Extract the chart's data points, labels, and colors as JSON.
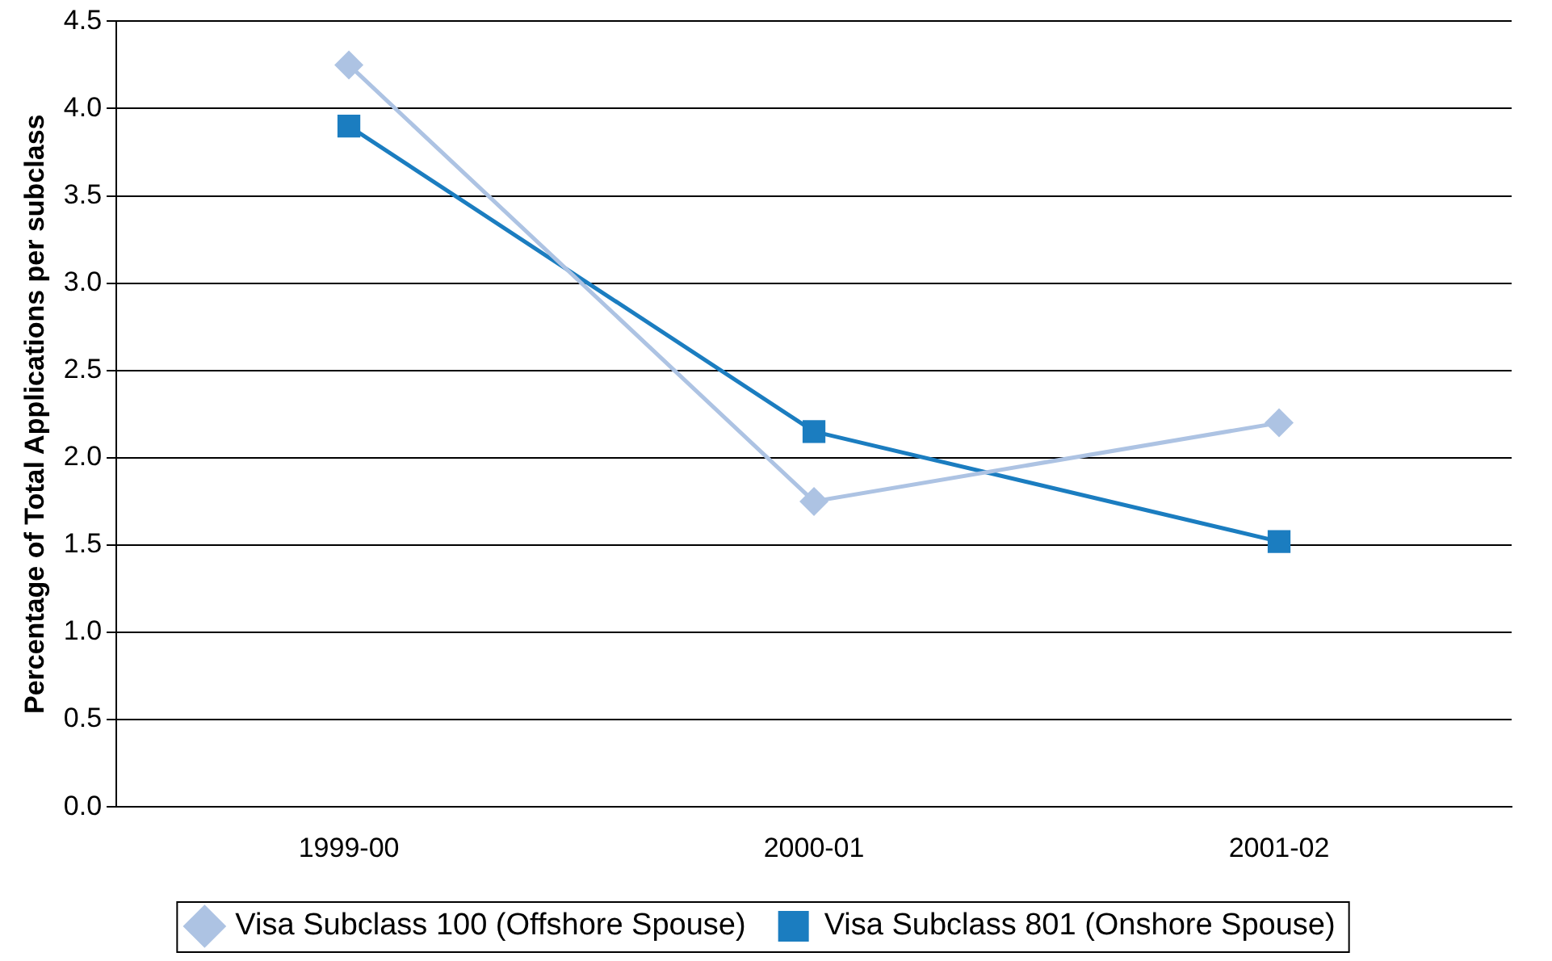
{
  "chart_data": {
    "type": "line",
    "ylabel": "Percentage of Total Applications per subclass",
    "categories": [
      "1999-00",
      "2000-01",
      "2001-02"
    ],
    "series": [
      {
        "name": "Visa Subclass 100 (Offshore Spouse)",
        "color": "#adc3e3",
        "marker": "diamond",
        "values": [
          4.25,
          1.75,
          2.2
        ]
      },
      {
        "name": "Visa Subclass 801 (Onshore Spouse)",
        "color": "#1b7dc0",
        "marker": "square",
        "values": [
          3.9,
          2.15,
          1.52
        ]
      }
    ],
    "ylim": [
      0,
      4.5
    ],
    "yticks": [
      {
        "value": 0,
        "label": "0.0"
      },
      {
        "value": 0.5,
        "label": "0.5"
      },
      {
        "value": 1,
        "label": "1.0"
      },
      {
        "value": 1.5,
        "label": "1.5"
      },
      {
        "value": 2,
        "label": "2.0"
      },
      {
        "value": 2.5,
        "label": "2.5"
      },
      {
        "value": 3,
        "label": "3.0"
      },
      {
        "value": 3.5,
        "label": "3.5"
      },
      {
        "value": 4,
        "label": "4.0"
      },
      {
        "value": 4.5,
        "label": "4.5"
      }
    ],
    "grid": "y",
    "legend": "bottom",
    "line_style": "solid"
  }
}
